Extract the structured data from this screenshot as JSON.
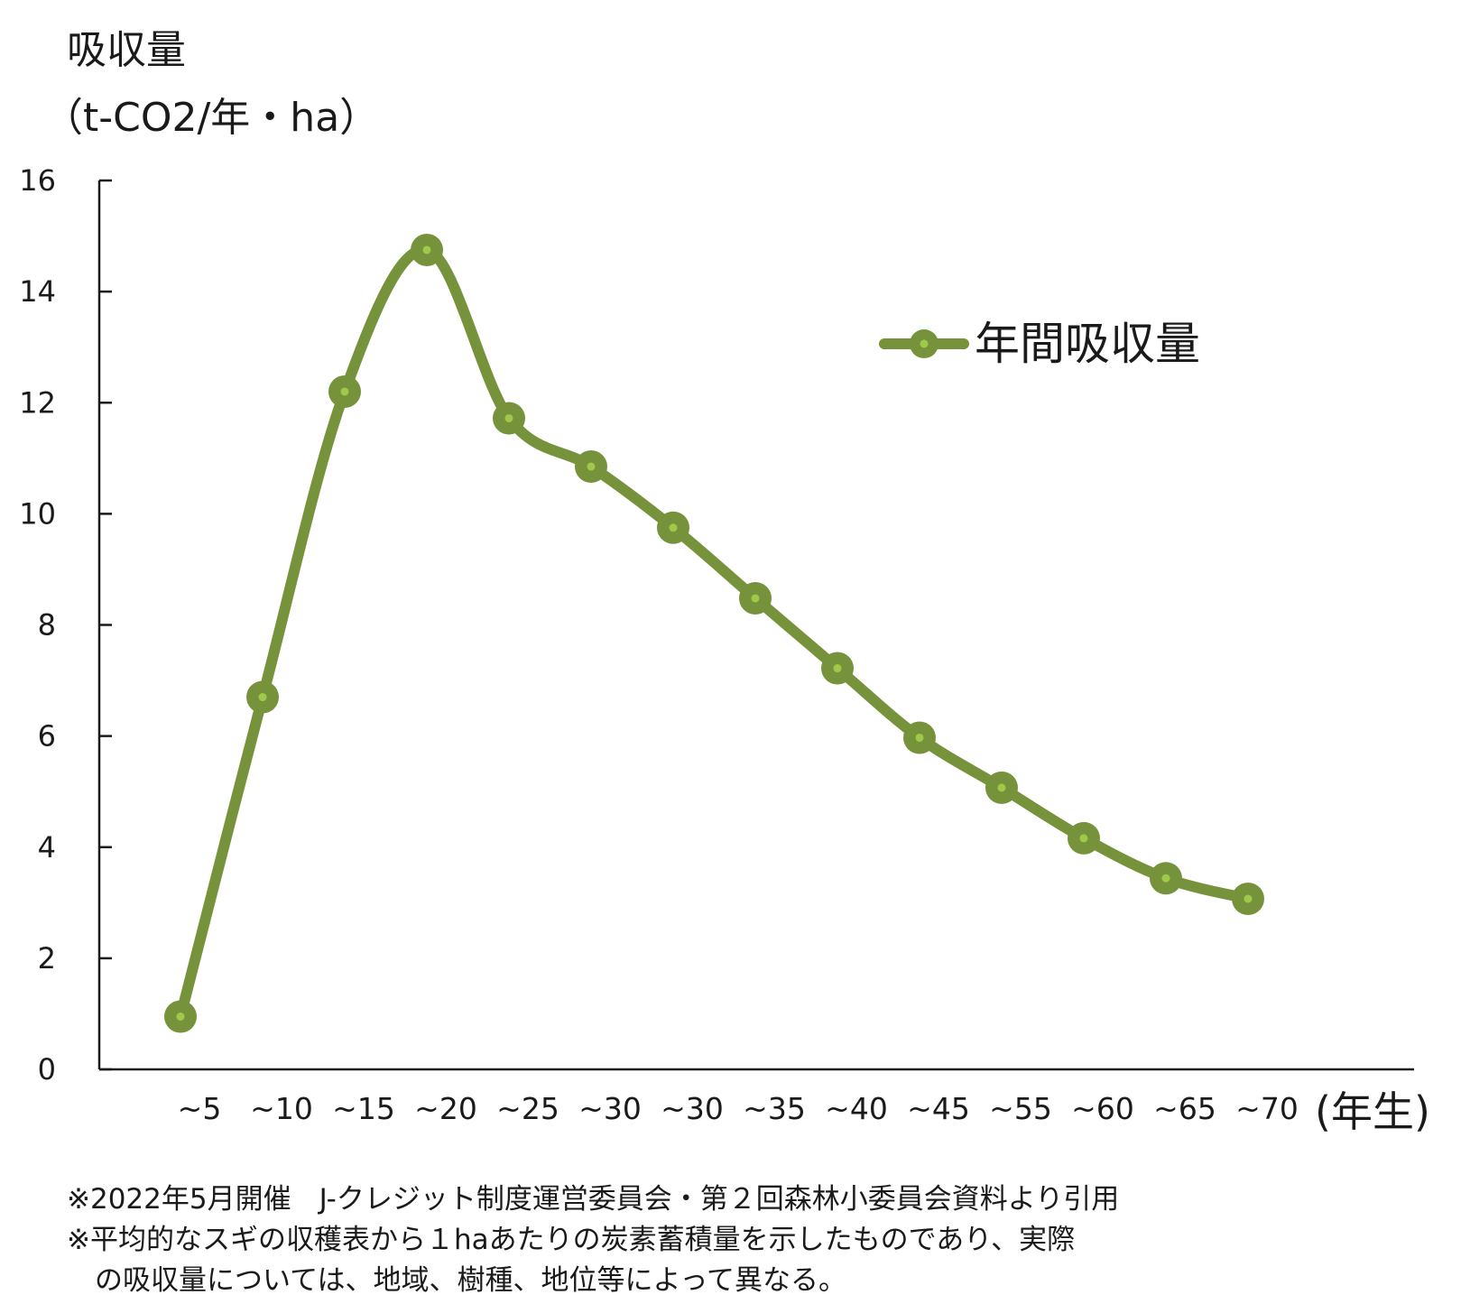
{
  "chart_data": {
    "type": "line",
    "ylabel_line1": "吸収量",
    "ylabel_line2": "（t-CO2/年・ha）",
    "xunit": "(年生)",
    "ylim": [
      0,
      16
    ],
    "yticks": [
      0,
      2,
      4,
      6,
      8,
      10,
      12,
      14,
      16
    ],
    "grid": false,
    "legend_position": "top-right",
    "categories": [
      "~5",
      "~10",
      "~15",
      "~20",
      "~25",
      "~30",
      "~30",
      "~35",
      "~40",
      "~45",
      "~55",
      "~60",
      "~65",
      "~70"
    ],
    "series": [
      {
        "name": "年間吸収量",
        "color": "#76933c",
        "marker_center_color": "#a0c84a",
        "values": [
          0.95,
          6.7,
          12.2,
          14.75,
          11.72,
          10.85,
          9.75,
          8.48,
          7.22,
          5.97,
          5.07,
          4.16,
          3.44,
          3.07
        ]
      }
    ]
  },
  "notes": [
    "※2022年5月開催　J-クレジット制度運営委員会・第２回森林小委員会資料より引用",
    "※平均的なスギの収穫表から１haあたりの炭素蓄積量を示したものであり、実際",
    "　の吸収量については、地域、樹種、地位等によって異なる。"
  ]
}
